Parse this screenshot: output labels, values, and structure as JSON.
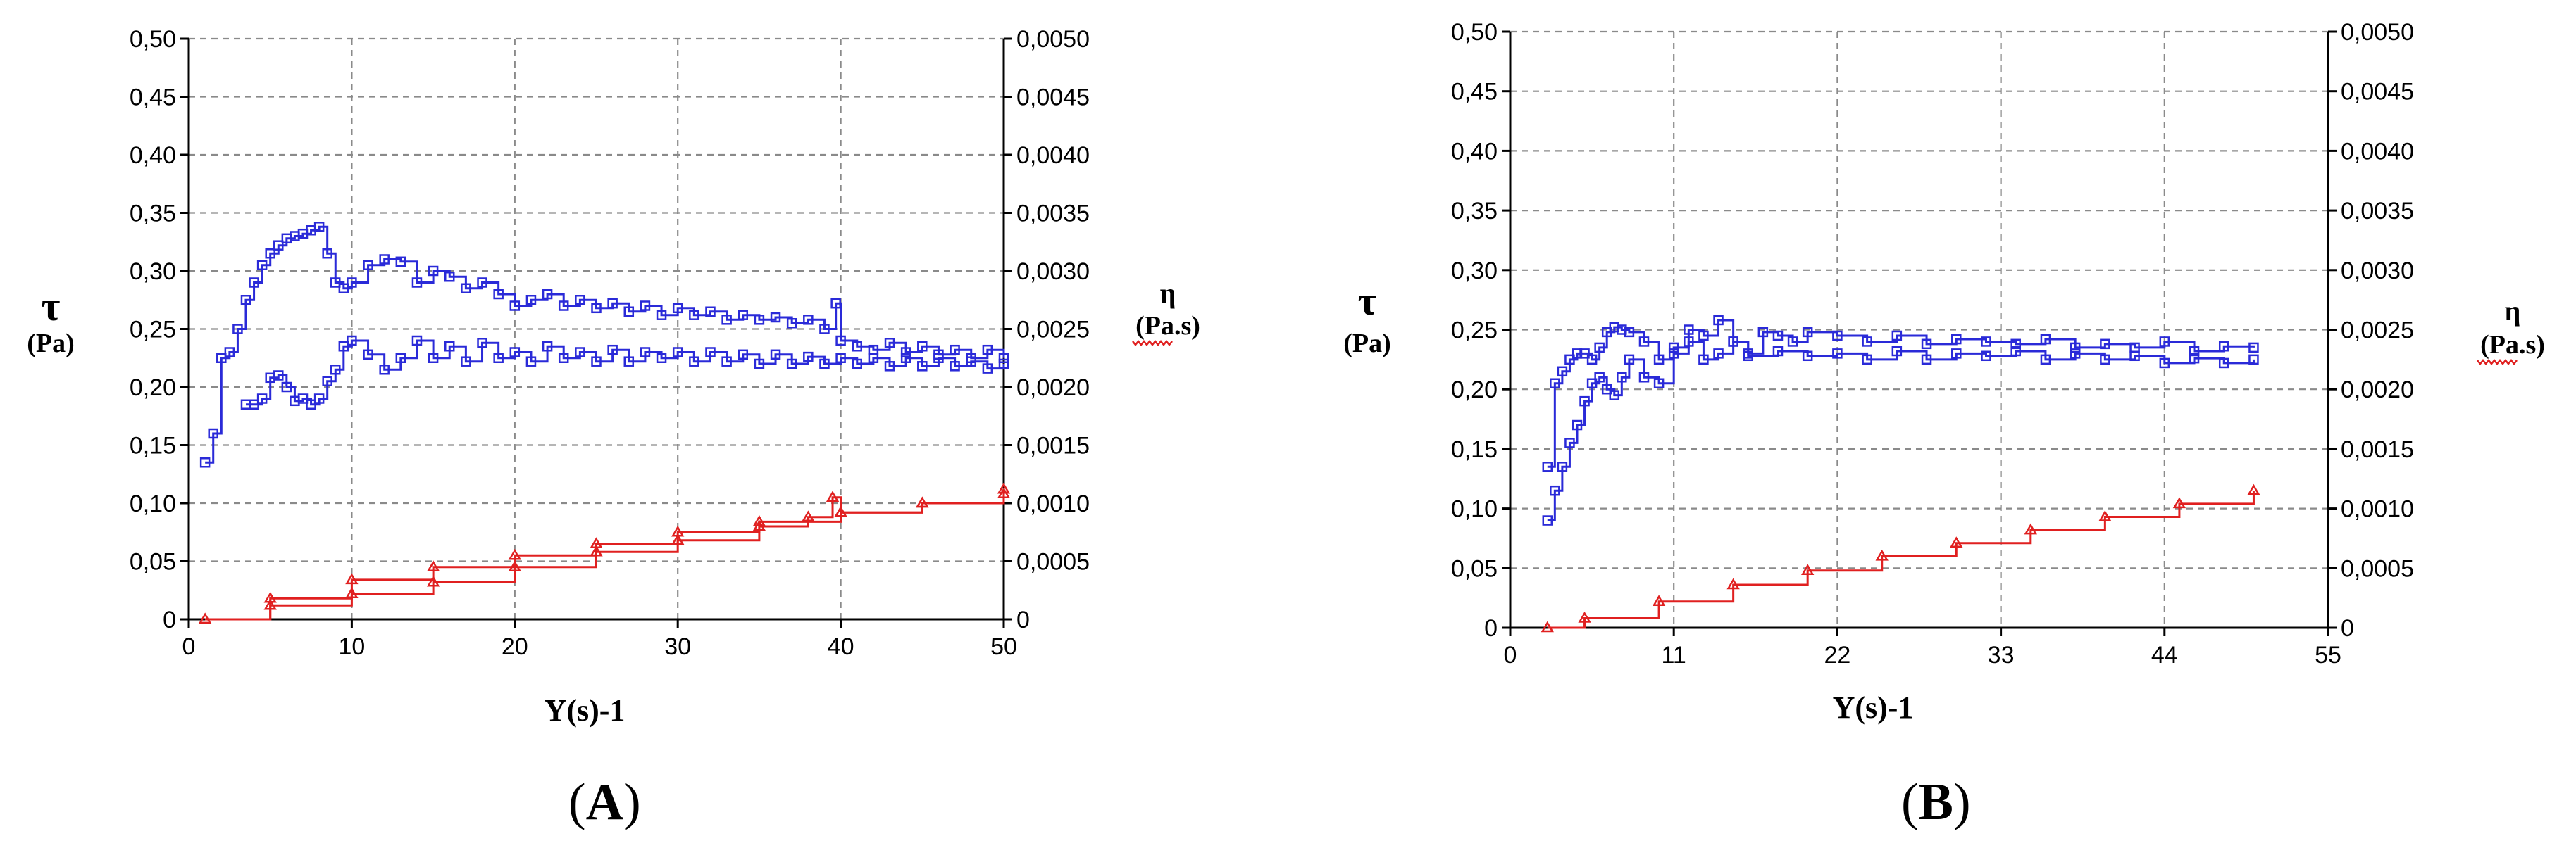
{
  "chart_data": [
    {
      "id": "A",
      "type": "line",
      "x_label": "Y(s)-1",
      "y_left_symbol": "τ",
      "y_left_unit": "(Pa)",
      "y_right_symbol": "η",
      "y_right_unit": "(Pa.s)",
      "xlim": [
        0,
        50
      ],
      "x_ticks": [
        "0",
        "10",
        "20",
        "30",
        "40",
        "50"
      ],
      "ylim_left": [
        0,
        0.5
      ],
      "y_left_ticks": [
        "0",
        "0,05",
        "0,10",
        "0,15",
        "0,20",
        "0,25",
        "0,30",
        "0,35",
        "0,40",
        "0,45",
        "0,50"
      ],
      "ylim_right": [
        0,
        0.005
      ],
      "y_right_ticks": [
        "0",
        "0,0005",
        "0,0010",
        "0,0015",
        "0,0020",
        "0,0025",
        "0,0030",
        "0,0035",
        "0,0040",
        "0,0045",
        "0,0050"
      ],
      "grid": true,
      "series": [
        {
          "axis": "right",
          "color": "#2a2ad8",
          "marker": "square",
          "x": [
            1.0,
            1.5,
            2.0,
            2.5,
            3.0,
            3.5,
            4.0,
            4.5,
            5.0,
            5.5,
            6.0,
            6.5,
            7.0,
            7.5,
            8.0,
            8.5,
            9.0,
            9.5,
            10.0,
            11.0,
            12.0,
            13.0,
            14.0,
            15.0,
            16.0,
            17.0,
            18.0,
            19.0,
            20.0,
            21.0,
            22.0,
            23.0,
            24.0,
            25.0,
            26.0,
            27.0,
            28.0,
            29.0,
            30.0,
            31.0,
            32.0,
            33.0,
            34.0,
            35.0,
            36.0,
            37.0,
            38.0,
            39.0,
            39.7,
            40.0,
            41.0,
            42.0,
            43.0,
            44.0,
            45.0,
            46.0,
            47.0,
            48.0,
            49.0,
            50.0
          ],
          "y": [
            0.00135,
            0.0016,
            0.00225,
            0.0023,
            0.0025,
            0.00275,
            0.0029,
            0.00305,
            0.00315,
            0.00322,
            0.00328,
            0.0033,
            0.00332,
            0.00335,
            0.00338,
            0.00315,
            0.0029,
            0.00285,
            0.0029,
            0.00305,
            0.0031,
            0.00308,
            0.0029,
            0.003,
            0.00295,
            0.00285,
            0.0029,
            0.0028,
            0.0027,
            0.00275,
            0.0028,
            0.0027,
            0.00275,
            0.00268,
            0.00272,
            0.00265,
            0.0027,
            0.00262,
            0.00268,
            0.00262,
            0.00265,
            0.00258,
            0.00262,
            0.00258,
            0.0026,
            0.00255,
            0.00258,
            0.0025,
            0.00272,
            0.0024,
            0.00235,
            0.00232,
            0.00238,
            0.0023,
            0.00235,
            0.00228,
            0.00232,
            0.00225,
            0.00232,
            0.00225
          ]
        },
        {
          "axis": "right",
          "color": "#2a2ad8",
          "marker": "square",
          "x": [
            3.5,
            4.0,
            4.5,
            5.0,
            5.5,
            6.0,
            6.5,
            7.0,
            7.5,
            8.0,
            8.5,
            9.0,
            9.5,
            10.0,
            11.0,
            12.0,
            13.0,
            14.0,
            15.0,
            16.0,
            17.0,
            18.0,
            19.0,
            20.0,
            21.0,
            22.0,
            23.0,
            24.0,
            25.0,
            26.0,
            27.0,
            28.0,
            29.0,
            30.0,
            31.0,
            32.0,
            33.0,
            34.0,
            35.0,
            36.0,
            37.0,
            38.0,
            39.0,
            40.0,
            41.0,
            42.0,
            43.0,
            44.0,
            45.0,
            46.0,
            47.0,
            48.0,
            49.0,
            50.0
          ],
          "y": [
            0.00185,
            0.00185,
            0.0019,
            0.00208,
            0.0021,
            0.002,
            0.00188,
            0.0019,
            0.00185,
            0.0019,
            0.00205,
            0.00215,
            0.00235,
            0.0024,
            0.00228,
            0.00215,
            0.00225,
            0.0024,
            0.00225,
            0.00235,
            0.00222,
            0.00238,
            0.00225,
            0.0023,
            0.00222,
            0.00235,
            0.00225,
            0.0023,
            0.00222,
            0.00232,
            0.00222,
            0.0023,
            0.00225,
            0.0023,
            0.00222,
            0.0023,
            0.00222,
            0.00228,
            0.0022,
            0.00228,
            0.0022,
            0.00226,
            0.0022,
            0.00225,
            0.0022,
            0.00225,
            0.00218,
            0.00225,
            0.00218,
            0.00225,
            0.00218,
            0.00222,
            0.00216,
            0.0022
          ]
        },
        {
          "axis": "left",
          "color": "#e02020",
          "marker": "triangle",
          "x": [
            1,
            5,
            10,
            15,
            20,
            25,
            30,
            35,
            40,
            45,
            50
          ],
          "y": [
            0.0,
            0.018,
            0.034,
            0.045,
            0.055,
            0.065,
            0.075,
            0.084,
            0.092,
            0.1,
            0.112
          ]
        },
        {
          "axis": "left",
          "color": "#e02020",
          "marker": "triangle",
          "x": [
            1,
            5,
            10,
            15,
            20,
            25,
            30,
            35,
            38,
            39.5,
            40,
            45,
            50
          ],
          "y": [
            0.0,
            0.012,
            0.022,
            0.032,
            0.045,
            0.058,
            0.068,
            0.08,
            0.088,
            0.105,
            0.092,
            0.1,
            0.108
          ]
        }
      ]
    },
    {
      "id": "B",
      "type": "line",
      "x_label": "Y(s)-1",
      "y_left_symbol": "τ",
      "y_left_unit": "(Pa)",
      "y_right_symbol": "η",
      "y_right_unit": "(Pa.s)",
      "xlim": [
        0,
        55
      ],
      "x_ticks": [
        "0",
        "11",
        "22",
        "33",
        "44",
        "55"
      ],
      "ylim_left": [
        0,
        0.5
      ],
      "y_left_ticks": [
        "0",
        "0,05",
        "0,10",
        "0,15",
        "0,20",
        "0,25",
        "0,30",
        "0,35",
        "0,40",
        "0,45",
        "0,50"
      ],
      "ylim_right": [
        0,
        0.005
      ],
      "y_right_ticks": [
        "0",
        "0,0005",
        "0,0010",
        "0,0015",
        "0,0020",
        "0,0025",
        "0,0030",
        "0,0035",
        "0,0040",
        "0,0045",
        "0,0050"
      ],
      "grid": true,
      "series": [
        {
          "axis": "right",
          "color": "#2a2ad8",
          "marker": "square",
          "x": [
            2.5,
            3.0,
            3.5,
            4.0,
            4.5,
            5.0,
            5.5,
            6.0,
            6.5,
            7.0,
            7.5,
            8.0,
            9.0,
            10.0,
            11.0,
            12.0,
            13.0,
            14.0,
            15.0,
            16.0,
            17.0,
            18.0,
            19.0,
            20.0,
            22.0,
            24.0,
            26.0,
            28.0,
            30.0,
            32.0,
            34.0,
            36.0,
            38.0,
            40.0,
            42.0,
            44.0,
            46.0,
            48.0,
            50.0
          ],
          "y": [
            0.00135,
            0.00205,
            0.00215,
            0.00225,
            0.0023,
            0.0023,
            0.00225,
            0.00235,
            0.00248,
            0.00252,
            0.0025,
            0.00248,
            0.0024,
            0.00225,
            0.00235,
            0.0025,
            0.00245,
            0.00258,
            0.0024,
            0.0023,
            0.00248,
            0.00245,
            0.0024,
            0.00248,
            0.00245,
            0.0024,
            0.00245,
            0.00238,
            0.00242,
            0.0024,
            0.00238,
            0.00242,
            0.00235,
            0.00238,
            0.00235,
            0.0024,
            0.00232,
            0.00236,
            0.00235
          ]
        },
        {
          "axis": "right",
          "color": "#2a2ad8",
          "marker": "square",
          "x": [
            2.5,
            3.0,
            3.5,
            4.0,
            4.5,
            5.0,
            5.5,
            6.0,
            6.5,
            7.0,
            7.5,
            8.0,
            9.0,
            10.0,
            11.0,
            12.0,
            13.0,
            14.0,
            15.0,
            16.0,
            18.0,
            20.0,
            22.0,
            24.0,
            26.0,
            28.0,
            30.0,
            32.0,
            34.0,
            36.0,
            38.0,
            40.0,
            42.0,
            44.0,
            46.0,
            48.0,
            50.0
          ],
          "y": [
            0.0009,
            0.00115,
            0.00135,
            0.00155,
            0.0017,
            0.0019,
            0.00205,
            0.0021,
            0.002,
            0.00195,
            0.0021,
            0.00225,
            0.0021,
            0.00205,
            0.0023,
            0.0024,
            0.00225,
            0.0023,
            0.0024,
            0.00228,
            0.00232,
            0.00228,
            0.0023,
            0.00225,
            0.00232,
            0.00225,
            0.0023,
            0.00228,
            0.00232,
            0.00225,
            0.0023,
            0.00225,
            0.00228,
            0.00222,
            0.00226,
            0.00222,
            0.00225
          ]
        },
        {
          "axis": "left",
          "color": "#e02020",
          "marker": "triangle",
          "x": [
            2.5,
            5,
            10,
            15,
            20,
            25,
            30,
            35,
            40,
            45,
            50
          ],
          "y": [
            0.0,
            0.008,
            0.022,
            0.036,
            0.048,
            0.06,
            0.071,
            0.082,
            0.093,
            0.104,
            0.115
          ]
        }
      ]
    }
  ],
  "panels": {
    "a_letter": "A",
    "b_letter": "B",
    "open_paren": "(",
    "close_paren": ")"
  }
}
